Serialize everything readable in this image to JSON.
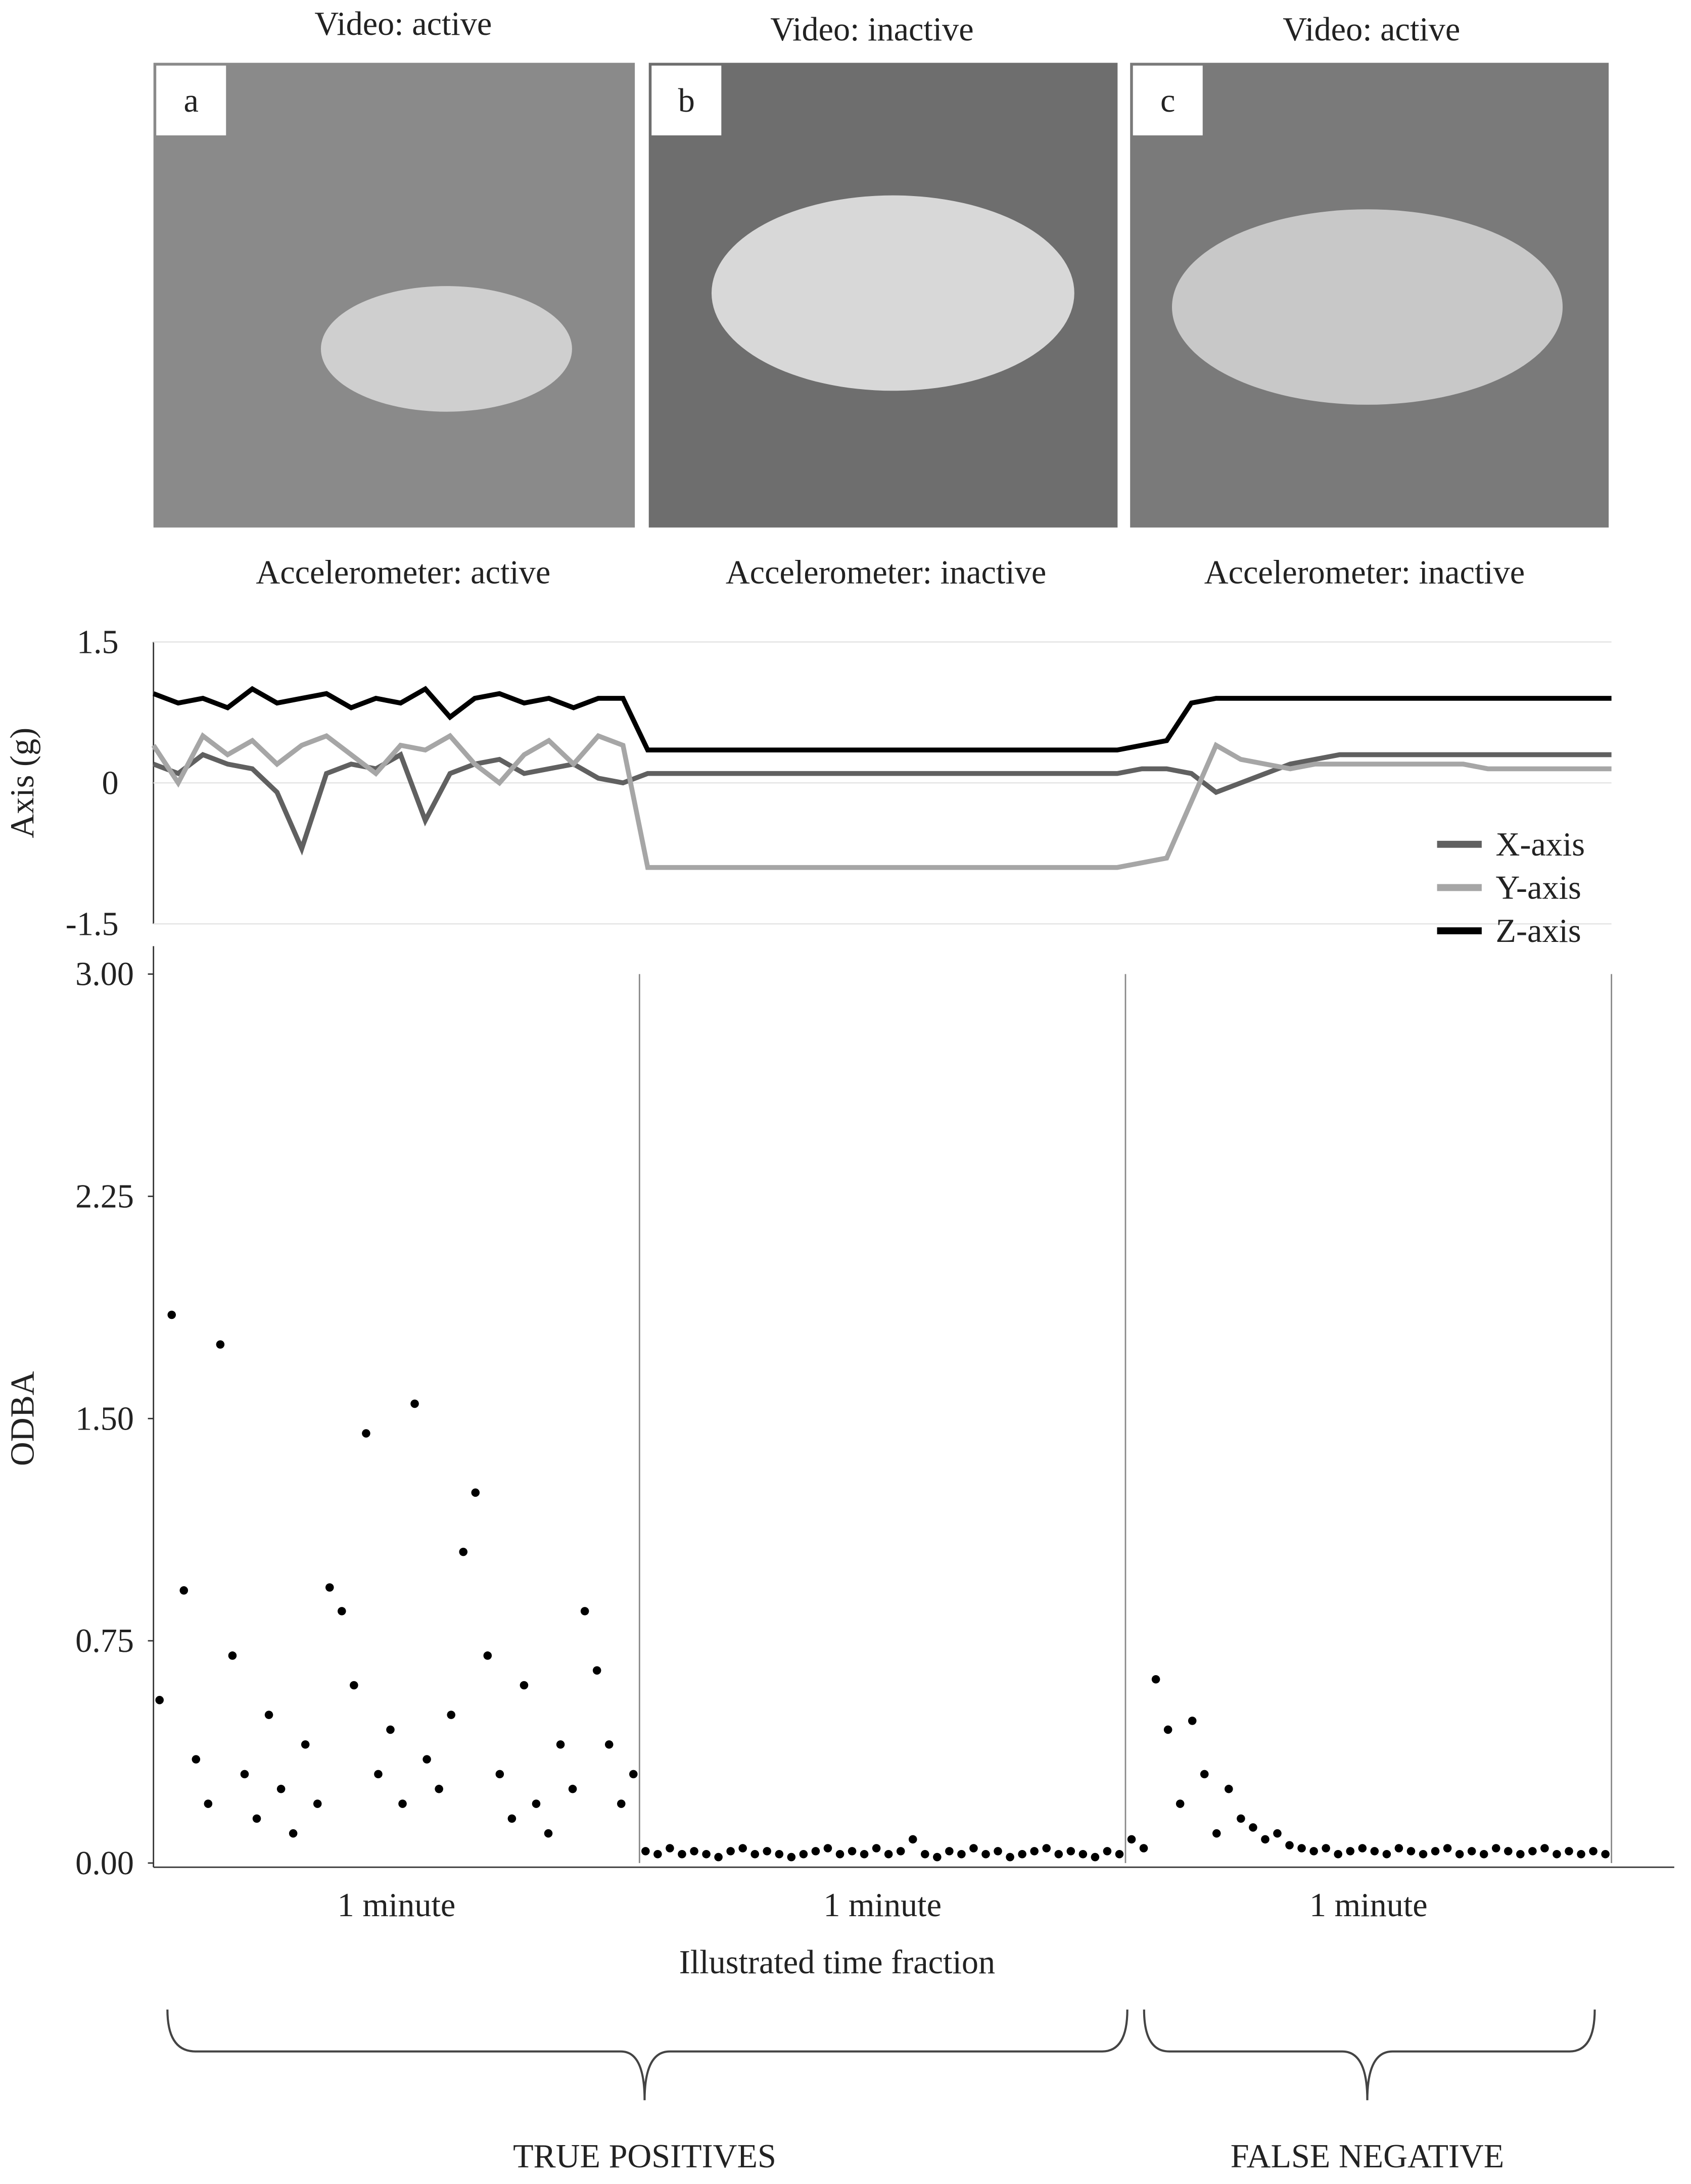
{
  "panels": [
    {
      "label": "a",
      "video": "Video: active",
      "accelerometer": "Accelerometer: active"
    },
    {
      "label": "b",
      "video": "Video: inactive",
      "accelerometer": "Accelerometer: inactive"
    },
    {
      "label": "c",
      "video": "Video: active",
      "accelerometer": "Accelerometer: inactive"
    }
  ],
  "chart_data": [
    {
      "type": "line",
      "y_label": "Axis (g)",
      "ylim": [
        -1.5,
        1.5
      ],
      "yticks": [
        {
          "value": -1.5,
          "label": "-1.5"
        },
        0,
        1.5
      ],
      "grid": true,
      "legend": "lower-right",
      "series": [
        {
          "name": "X-axis",
          "color": "#606060",
          "values": [
            0.2,
            0.1,
            0.3,
            0.2,
            0.15,
            -0.1,
            -0.7,
            0.1,
            0.2,
            0.15,
            0.3,
            -0.4,
            0.1,
            0.2,
            0.25,
            0.1,
            0.15,
            0.2,
            0.05,
            0.0,
            0.1,
            0.1,
            0.1,
            0.1,
            0.1,
            0.1,
            0.1,
            0.1,
            0.1,
            0.1,
            0.1,
            0.1,
            0.1,
            0.1,
            0.1,
            0.1,
            0.1,
            0.1,
            0.1,
            0.1,
            0.15,
            0.15,
            0.1,
            -0.1,
            0.0,
            0.1,
            0.2,
            0.25,
            0.3,
            0.3,
            0.3,
            0.3,
            0.3,
            0.3,
            0.3,
            0.3,
            0.3,
            0.3,
            0.3,
            0.3
          ]
        },
        {
          "name": "Y-axis",
          "color": "#a6a6a6",
          "values": [
            0.4,
            0.0,
            0.5,
            0.3,
            0.45,
            0.2,
            0.4,
            0.5,
            0.3,
            0.1,
            0.4,
            0.35,
            0.5,
            0.2,
            0.0,
            0.3,
            0.45,
            0.2,
            0.5,
            0.4,
            -0.9,
            -0.9,
            -0.9,
            -0.9,
            -0.9,
            -0.9,
            -0.9,
            -0.9,
            -0.9,
            -0.9,
            -0.9,
            -0.9,
            -0.9,
            -0.9,
            -0.9,
            -0.9,
            -0.9,
            -0.9,
            -0.9,
            -0.9,
            -0.85,
            -0.8,
            -0.2,
            0.4,
            0.25,
            0.2,
            0.15,
            0.2,
            0.2,
            0.2,
            0.2,
            0.2,
            0.2,
            0.2,
            0.15,
            0.15,
            0.15,
            0.15,
            0.15,
            0.15
          ]
        },
        {
          "name": "Z-axis",
          "color": "#000000",
          "values": [
            0.95,
            0.85,
            0.9,
            0.8,
            1.0,
            0.85,
            0.9,
            0.95,
            0.8,
            0.9,
            0.85,
            1.0,
            0.7,
            0.9,
            0.95,
            0.85,
            0.9,
            0.8,
            0.9,
            0.9,
            0.35,
            0.35,
            0.35,
            0.35,
            0.35,
            0.35,
            0.35,
            0.35,
            0.35,
            0.35,
            0.35,
            0.35,
            0.35,
            0.35,
            0.35,
            0.35,
            0.35,
            0.35,
            0.35,
            0.35,
            0.4,
            0.45,
            0.85,
            0.9,
            0.9,
            0.9,
            0.9,
            0.9,
            0.9,
            0.9,
            0.9,
            0.9,
            0.9,
            0.9,
            0.9,
            0.9,
            0.9,
            0.9,
            0.9,
            0.9
          ]
        }
      ]
    },
    {
      "type": "scatter",
      "y_label": "ODBA",
      "x_label": "Illustrated time fraction",
      "color": "#000000",
      "ylim": [
        0,
        3
      ],
      "yticks": [
        {
          "value": 0,
          "label": "0.00"
        },
        {
          "value": 0.75,
          "label": "0.75"
        },
        {
          "value": 1.5,
          "label": "1.50"
        },
        {
          "value": 2.25,
          "label": "2.25"
        },
        {
          "value": 3,
          "label": "3.00"
        }
      ],
      "categories": [
        "1 minute",
        "1 minute",
        "1 minute"
      ],
      "values": [
        0.55,
        1.85,
        0.92,
        0.35,
        0.2,
        1.75,
        0.7,
        0.3,
        0.15,
        0.5,
        0.25,
        0.1,
        0.4,
        0.2,
        0.93,
        0.85,
        0.6,
        1.45,
        0.3,
        0.45,
        0.2,
        1.55,
        0.35,
        0.25,
        0.5,
        1.05,
        1.25,
        0.7,
        0.3,
        0.15,
        0.6,
        0.2,
        0.1,
        0.4,
        0.25,
        0.85,
        0.65,
        0.4,
        0.2,
        0.3,
        0.04,
        0.03,
        0.05,
        0.03,
        0.04,
        0.03,
        0.02,
        0.04,
        0.05,
        0.03,
        0.04,
        0.03,
        0.02,
        0.03,
        0.04,
        0.05,
        0.03,
        0.04,
        0.03,
        0.05,
        0.03,
        0.04,
        0.08,
        0.03,
        0.02,
        0.04,
        0.03,
        0.05,
        0.03,
        0.04,
        0.02,
        0.03,
        0.04,
        0.05,
        0.03,
        0.04,
        0.03,
        0.02,
        0.04,
        0.03,
        0.08,
        0.05,
        0.62,
        0.45,
        0.2,
        0.48,
        0.3,
        0.1,
        0.25,
        0.15,
        0.12,
        0.08,
        0.1,
        0.06,
        0.05,
        0.04,
        0.05,
        0.03,
        0.04,
        0.05,
        0.04,
        0.03,
        0.05,
        0.04,
        0.03,
        0.04,
        0.05,
        0.03,
        0.04,
        0.03,
        0.05,
        0.04,
        0.03,
        0.04,
        0.05,
        0.03,
        0.04,
        0.03,
        0.04,
        0.03
      ]
    }
  ],
  "groups": [
    "TRUE POSITIVES",
    "FALSE NEGATIVE"
  ]
}
